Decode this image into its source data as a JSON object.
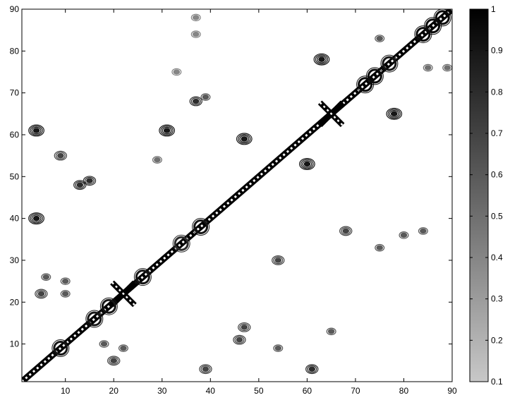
{
  "chart_data": {
    "type": "heatmap",
    "subtype": "contour",
    "title": "",
    "xlabel": "",
    "ylabel": "",
    "xlim": [
      1,
      90
    ],
    "ylim": [
      1,
      90
    ],
    "x_ticks": [
      10,
      20,
      30,
      40,
      50,
      60,
      70,
      80,
      90
    ],
    "y_ticks": [
      10,
      20,
      30,
      40,
      50,
      60,
      70,
      80,
      90
    ],
    "grid": false,
    "colorbar": {
      "range": [
        0.1,
        1
      ],
      "ticks": [
        0.1,
        0.2,
        0.3,
        0.4,
        0.5,
        0.6,
        0.7,
        0.8,
        0.9,
        1
      ],
      "colormap": "gray (light at 0.1, black at 1)",
      "low_color": "#c8c8c8",
      "high_color": "#000000"
    },
    "diagonal": {
      "from": 1,
      "to": 90,
      "value": 1
    },
    "features": [
      {
        "x": 22,
        "y": 22,
        "shape": "x-cross",
        "value": 1
      },
      {
        "x": 65,
        "y": 65,
        "shape": "x-cross",
        "value": 1
      },
      {
        "x": 38,
        "y": 38,
        "shape": "node",
        "value": 0.9
      },
      {
        "x": 34,
        "y": 34,
        "shape": "node",
        "value": 0.8
      },
      {
        "x": 26,
        "y": 26,
        "shape": "node",
        "value": 0.9
      },
      {
        "x": 19,
        "y": 19,
        "shape": "node",
        "value": 0.9
      },
      {
        "x": 16,
        "y": 16,
        "shape": "node",
        "value": 0.9
      },
      {
        "x": 9,
        "y": 9,
        "shape": "node",
        "value": 0.9
      },
      {
        "x": 72,
        "y": 72,
        "shape": "node",
        "value": 0.95
      },
      {
        "x": 74,
        "y": 74,
        "shape": "node",
        "value": 0.95
      },
      {
        "x": 77,
        "y": 77,
        "shape": "node",
        "value": 0.9
      },
      {
        "x": 84,
        "y": 84,
        "shape": "node",
        "value": 0.95
      },
      {
        "x": 86,
        "y": 86,
        "shape": "node",
        "value": 0.95
      },
      {
        "x": 88,
        "y": 88,
        "shape": "node",
        "value": 0.95
      },
      {
        "x": 4,
        "y": 61,
        "shape": "blob",
        "value": 0.9
      },
      {
        "x": 4,
        "y": 40,
        "shape": "blob",
        "value": 0.9
      },
      {
        "x": 9,
        "y": 55,
        "shape": "blob",
        "value": 0.7
      },
      {
        "x": 13,
        "y": 48,
        "shape": "blob",
        "value": 0.8
      },
      {
        "x": 15,
        "y": 49,
        "shape": "blob",
        "value": 0.8
      },
      {
        "x": 6,
        "y": 26,
        "shape": "blob",
        "value": 0.6
      },
      {
        "x": 10,
        "y": 25,
        "shape": "blob",
        "value": 0.6
      },
      {
        "x": 5,
        "y": 22,
        "shape": "blob",
        "value": 0.7
      },
      {
        "x": 10,
        "y": 22,
        "shape": "blob",
        "value": 0.6
      },
      {
        "x": 20,
        "y": 6,
        "shape": "blob",
        "value": 0.7
      },
      {
        "x": 22,
        "y": 9,
        "shape": "blob",
        "value": 0.6
      },
      {
        "x": 18,
        "y": 10,
        "shape": "blob",
        "value": 0.6
      },
      {
        "x": 29,
        "y": 54,
        "shape": "blob",
        "value": 0.5
      },
      {
        "x": 31,
        "y": 61,
        "shape": "blob",
        "value": 0.9
      },
      {
        "x": 37,
        "y": 68,
        "shape": "blob",
        "value": 0.8
      },
      {
        "x": 39,
        "y": 69,
        "shape": "blob",
        "value": 0.6
      },
      {
        "x": 33,
        "y": 75,
        "shape": "blob",
        "value": 0.4
      },
      {
        "x": 37,
        "y": 84,
        "shape": "blob",
        "value": 0.4
      },
      {
        "x": 37,
        "y": 88,
        "shape": "blob",
        "value": 0.4
      },
      {
        "x": 47,
        "y": 59,
        "shape": "blob",
        "value": 0.9
      },
      {
        "x": 47,
        "y": 14,
        "shape": "blob",
        "value": 0.7
      },
      {
        "x": 46,
        "y": 11,
        "shape": "blob",
        "value": 0.7
      },
      {
        "x": 54,
        "y": 30,
        "shape": "blob",
        "value": 0.7
      },
      {
        "x": 54,
        "y": 9,
        "shape": "blob",
        "value": 0.6
      },
      {
        "x": 60,
        "y": 53,
        "shape": "blob",
        "value": 0.9
      },
      {
        "x": 61,
        "y": 4,
        "shape": "blob",
        "value": 0.8
      },
      {
        "x": 39,
        "y": 4,
        "shape": "blob",
        "value": 0.7
      },
      {
        "x": 63,
        "y": 78,
        "shape": "blob",
        "value": 0.9
      },
      {
        "x": 65,
        "y": 13,
        "shape": "blob",
        "value": 0.6
      },
      {
        "x": 68,
        "y": 37,
        "shape": "blob",
        "value": 0.7
      },
      {
        "x": 75,
        "y": 83,
        "shape": "blob",
        "value": 0.6
      },
      {
        "x": 75,
        "y": 33,
        "shape": "blob",
        "value": 0.6
      },
      {
        "x": 78,
        "y": 65,
        "shape": "blob",
        "value": 0.9
      },
      {
        "x": 80,
        "y": 36,
        "shape": "blob",
        "value": 0.6
      },
      {
        "x": 84,
        "y": 37,
        "shape": "blob",
        "value": 0.6
      },
      {
        "x": 85,
        "y": 76,
        "shape": "blob",
        "value": 0.5
      },
      {
        "x": 89,
        "y": 76,
        "shape": "blob",
        "value": 0.5
      }
    ]
  }
}
